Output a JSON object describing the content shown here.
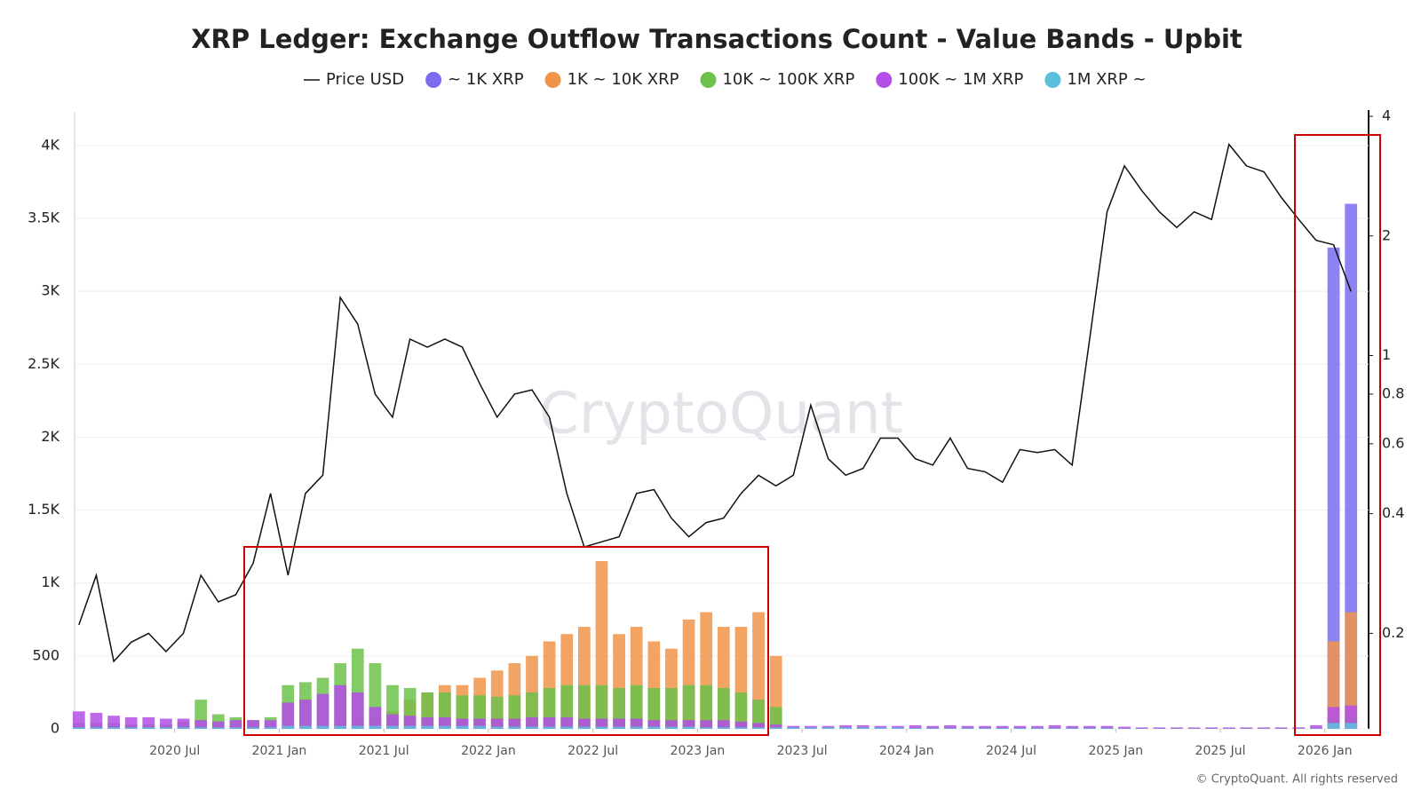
{
  "chart_data": {
    "type": "bar",
    "title": "XRP Ledger: Exchange Outflow Transactions Count - Value Bands - Upbit",
    "watermark": "CryptoQuant",
    "copyright": "© CryptoQuant. All rights reserved",
    "x": [
      "2020-01",
      "2020-02",
      "2020-03",
      "2020-04",
      "2020-05",
      "2020-06",
      "2020-07",
      "2020-08",
      "2020-09",
      "2020-10",
      "2020-11",
      "2020-12",
      "2021-01",
      "2021-02",
      "2021-03",
      "2021-04",
      "2021-05",
      "2021-06",
      "2021-07",
      "2021-08",
      "2021-09",
      "2021-10",
      "2021-11",
      "2021-12",
      "2022-01",
      "2022-02",
      "2022-03",
      "2022-04",
      "2022-05",
      "2022-06",
      "2022-07",
      "2022-08",
      "2022-09",
      "2022-10",
      "2022-11",
      "2022-12",
      "2023-01",
      "2023-02",
      "2023-03",
      "2023-04",
      "2023-05",
      "2023-06",
      "2023-07",
      "2023-08",
      "2023-09",
      "2023-10",
      "2023-11",
      "2023-12",
      "2024-01",
      "2024-02",
      "2024-03",
      "2024-04",
      "2024-05",
      "2024-06",
      "2024-07",
      "2024-08",
      "2024-09",
      "2024-10",
      "2024-11",
      "2024-12",
      "2025-01",
      "2025-02",
      "2025-03",
      "2025-04",
      "2025-05",
      "2025-06",
      "2025-07",
      "2025-08",
      "2025-09",
      "2025-10",
      "2025-11",
      "2025-12",
      "2026-01",
      "2026-02"
    ],
    "xlim": [
      "2020-01",
      "2026-03"
    ],
    "xticks": [
      {
        "value": "2020-07",
        "label": "2020 Jul"
      },
      {
        "value": "2021-01",
        "label": "2021 Jan"
      },
      {
        "value": "2021-07",
        "label": "2021 Jul"
      },
      {
        "value": "2022-01",
        "label": "2022 Jan"
      },
      {
        "value": "2022-07",
        "label": "2022 Jul"
      },
      {
        "value": "2023-01",
        "label": "2023 Jan"
      },
      {
        "value": "2023-07",
        "label": "2023 Jul"
      },
      {
        "value": "2024-01",
        "label": "2024 Jan"
      },
      {
        "value": "2024-07",
        "label": "2024 Jul"
      },
      {
        "value": "2025-01",
        "label": "2025 Jan"
      },
      {
        "value": "2025-07",
        "label": "2025 Jul"
      },
      {
        "value": "2026-01",
        "label": "2026 Jan"
      }
    ],
    "ylim": [
      0,
      4200
    ],
    "yticks": [
      0,
      500,
      {
        "value": 1000,
        "label": "1K"
      },
      {
        "value": 1500,
        "label": "1.5K"
      },
      {
        "value": 2000,
        "label": "2K"
      },
      {
        "value": 2500,
        "label": "2.5K"
      },
      {
        "value": 3000,
        "label": "3K"
      },
      {
        "value": 3500,
        "label": "3.5K"
      },
      {
        "value": 4000,
        "label": "4K"
      }
    ],
    "y2lim": [
      0.115,
      4
    ],
    "y2ticks": [
      0.2,
      0.4,
      0.6,
      0.8,
      1,
      2,
      4
    ],
    "y2scale": "log",
    "grid": true,
    "series": [
      {
        "name": "Price USD",
        "type": "line",
        "axis": "y2",
        "color": "#111111",
        "values": [
          0.21,
          0.28,
          0.17,
          0.19,
          0.2,
          0.18,
          0.2,
          0.28,
          0.24,
          0.25,
          0.3,
          0.45,
          0.28,
          0.45,
          0.5,
          1.4,
          1.2,
          0.8,
          0.7,
          1.1,
          1.05,
          1.1,
          1.05,
          0.85,
          0.7,
          0.8,
          0.82,
          0.7,
          0.45,
          0.33,
          0.34,
          0.35,
          0.45,
          0.46,
          0.39,
          0.35,
          0.38,
          0.39,
          0.45,
          0.5,
          0.47,
          0.5,
          0.75,
          0.55,
          0.5,
          0.52,
          0.62,
          0.62,
          0.55,
          0.53,
          0.62,
          0.52,
          0.51,
          0.48,
          0.58,
          0.57,
          0.58,
          0.53,
          1.1,
          2.3,
          3.0,
          2.6,
          2.3,
          2.1,
          2.3,
          2.2,
          3.4,
          3.0,
          2.9,
          2.5,
          2.2,
          1.95,
          1.9,
          1.45
        ]
      },
      {
        "name": "~ 1K XRP",
        "color": "#7b6cf0",
        "values": [
          5,
          5,
          5,
          5,
          5,
          5,
          5,
          5,
          5,
          5,
          5,
          5,
          5,
          5,
          5,
          5,
          5,
          5,
          5,
          5,
          5,
          5,
          5,
          5,
          5,
          5,
          5,
          5,
          5,
          5,
          5,
          5,
          5,
          5,
          5,
          5,
          5,
          5,
          5,
          5,
          5,
          5,
          5,
          5,
          5,
          5,
          5,
          5,
          5,
          5,
          5,
          5,
          5,
          5,
          5,
          5,
          5,
          5,
          5,
          5,
          5,
          5,
          5,
          5,
          5,
          5,
          5,
          5,
          5,
          5,
          5,
          5,
          3300,
          3600
        ]
      },
      {
        "name": "1K ~ 10K XRP",
        "color": "#f0944a",
        "values": [
          0,
          0,
          0,
          0,
          0,
          0,
          0,
          0,
          0,
          0,
          0,
          0,
          5,
          10,
          20,
          40,
          60,
          80,
          120,
          200,
          250,
          300,
          300,
          350,
          400,
          450,
          500,
          600,
          650,
          700,
          1150,
          650,
          700,
          600,
          550,
          750,
          800,
          700,
          700,
          800,
          500,
          5,
          5,
          5,
          5,
          5,
          5,
          5,
          5,
          5,
          5,
          5,
          5,
          5,
          5,
          5,
          5,
          5,
          5,
          5,
          5,
          5,
          5,
          5,
          5,
          5,
          5,
          5,
          5,
          5,
          5,
          5,
          600,
          800
        ]
      },
      {
        "name": "10K ~ 100K XRP",
        "color": "#6cc24a",
        "values": [
          40,
          40,
          40,
          30,
          30,
          30,
          50,
          200,
          100,
          80,
          60,
          80,
          300,
          320,
          350,
          450,
          550,
          450,
          300,
          280,
          250,
          250,
          230,
          230,
          220,
          230,
          250,
          280,
          300,
          300,
          300,
          280,
          300,
          280,
          280,
          300,
          300,
          280,
          250,
          200,
          150,
          15,
          10,
          10,
          10,
          10,
          10,
          10,
          10,
          10,
          10,
          10,
          10,
          10,
          10,
          10,
          10,
          10,
          10,
          10,
          5,
          5,
          5,
          5,
          5,
          5,
          5,
          5,
          5,
          5,
          5,
          5,
          60,
          80
        ]
      },
      {
        "name": "100K ~ 1M XRP",
        "color": "#b44ee6",
        "values": [
          120,
          110,
          90,
          80,
          80,
          70,
          70,
          60,
          50,
          60,
          60,
          60,
          180,
          200,
          240,
          300,
          250,
          150,
          100,
          90,
          80,
          80,
          70,
          70,
          70,
          70,
          80,
          80,
          80,
          70,
          70,
          70,
          70,
          60,
          60,
          60,
          60,
          60,
          50,
          40,
          30,
          20,
          20,
          20,
          25,
          25,
          20,
          20,
          25,
          20,
          25,
          20,
          20,
          20,
          20,
          20,
          25,
          20,
          20,
          20,
          15,
          10,
          10,
          10,
          10,
          10,
          10,
          10,
          10,
          10,
          10,
          25,
          150,
          160
        ]
      },
      {
        "name": "1M XRP ~",
        "color": "#5bc0de",
        "values": [
          10,
          10,
          10,
          10,
          10,
          10,
          10,
          10,
          10,
          10,
          10,
          10,
          20,
          20,
          20,
          20,
          20,
          20,
          20,
          20,
          20,
          20,
          20,
          20,
          15,
          15,
          15,
          15,
          15,
          15,
          15,
          15,
          15,
          15,
          15,
          15,
          10,
          10,
          10,
          10,
          10,
          10,
          10,
          10,
          10,
          10,
          10,
          10,
          5,
          5,
          5,
          5,
          5,
          5,
          5,
          5,
          5,
          5,
          5,
          5,
          3,
          3,
          3,
          3,
          3,
          3,
          3,
          3,
          3,
          3,
          3,
          3,
          40,
          40
        ]
      }
    ]
  }
}
